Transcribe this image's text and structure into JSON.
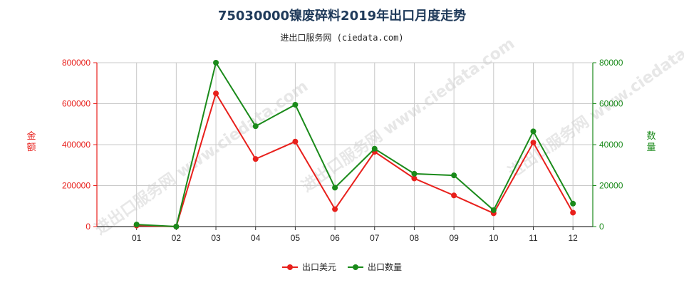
{
  "title": "75030000镍废碎料2019年出口月度走势",
  "subtitle": "进出口服务网 (ciedata.com)",
  "watermark": "进出口服务网 www.ciedata.com",
  "chart_data": {
    "type": "line",
    "categories": [
      "01",
      "02",
      "03",
      "04",
      "05",
      "06",
      "07",
      "08",
      "09",
      "10",
      "11",
      "12"
    ],
    "ylabel_left": "金额",
    "ylabel_right": "数量",
    "ylim_left": [
      0,
      800000
    ],
    "ylim_right": [
      0,
      80000
    ],
    "yticks_left": [
      "0",
      "200000",
      "400000",
      "600000",
      "800000"
    ],
    "yticks_right": [
      "0",
      "20000",
      "40000",
      "60000",
      "80000"
    ],
    "grid": true,
    "legend_position": "bottom",
    "series": [
      {
        "name": "出口美元",
        "axis": "left",
        "color": "#e8201c",
        "values": [
          5000,
          0,
          650000,
          330000,
          415000,
          85000,
          365000,
          235000,
          152000,
          65000,
          410000,
          68000
        ]
      },
      {
        "name": "出口数量",
        "axis": "right",
        "color": "#1a8a1a",
        "values": [
          1000,
          0,
          80000,
          49000,
          59500,
          19000,
          38000,
          25800,
          25000,
          8000,
          46500,
          11200
        ]
      }
    ]
  },
  "colors": {
    "left_axis": "#e8201c",
    "right_axis": "#1a8a1a",
    "grid": "#c8c8c8"
  }
}
